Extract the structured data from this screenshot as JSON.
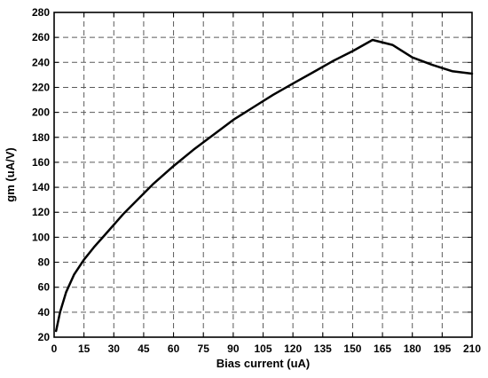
{
  "chart_data": {
    "type": "line",
    "title": "",
    "xlabel": "Bias current (uA)",
    "ylabel": "gm (uA/V)",
    "xlim": [
      0,
      210
    ],
    "ylim": [
      20,
      280
    ],
    "x_ticks": [
      0,
      15,
      30,
      45,
      60,
      75,
      90,
      105,
      120,
      135,
      150,
      165,
      180,
      195,
      210
    ],
    "y_ticks": [
      20,
      40,
      60,
      80,
      100,
      120,
      140,
      160,
      180,
      200,
      220,
      240,
      260,
      280
    ],
    "grid": true,
    "series": [
      {
        "x": [
          1,
          3,
          6,
          10,
          15,
          20,
          25,
          30,
          35,
          40,
          45,
          50,
          60,
          70,
          80,
          90,
          100,
          110,
          120,
          130,
          140,
          150,
          160,
          170,
          180,
          190,
          200,
          210
        ],
        "y": [
          25,
          40,
          56,
          70,
          82,
          92,
          101,
          110,
          119,
          127,
          135,
          143,
          157,
          170,
          182,
          194,
          204,
          214,
          223,
          232,
          241,
          249,
          258,
          254,
          244,
          238,
          233,
          231
        ]
      }
    ],
    "color": "#000000"
  }
}
